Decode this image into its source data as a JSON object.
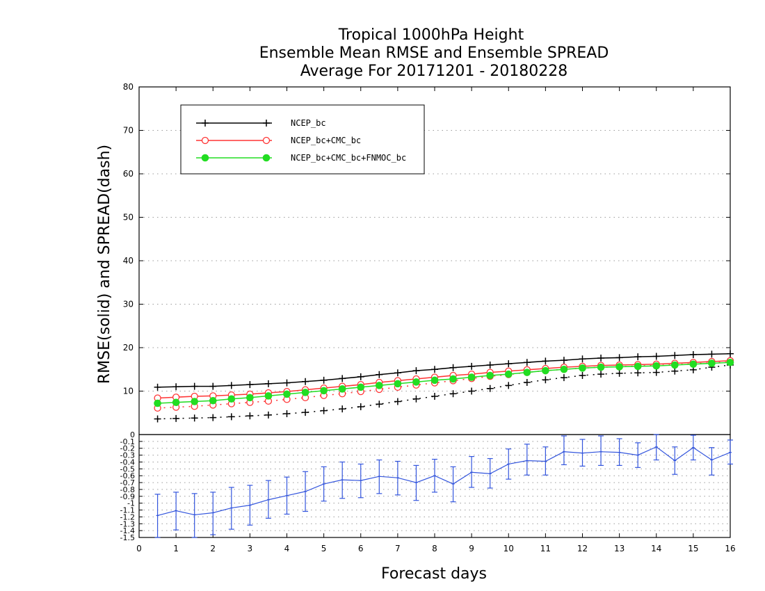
{
  "chart_data": [
    {
      "type": "line",
      "title_lines": [
        "Tropical 1000hPa Height",
        "Ensemble Mean RMSE and Ensemble SPREAD",
        "Average For 20171201 - 20180228"
      ],
      "xlabel": "Forecast days",
      "ylabel": "RMSE(solid) and SPREAD(dash)",
      "xlim": [
        0,
        16
      ],
      "ylim": [
        0,
        80
      ],
      "x_ticks": [
        0,
        1,
        2,
        3,
        4,
        5,
        6,
        7,
        8,
        9,
        10,
        11,
        12,
        13,
        14,
        15,
        16
      ],
      "x_tick_labels": [
        "0",
        "1",
        "2",
        "3",
        "4",
        "5",
        "6",
        "7",
        "8",
        "9",
        "10",
        "11",
        "12",
        "13",
        "14",
        "15",
        "16"
      ],
      "y_ticks": [
        10,
        20,
        30,
        40,
        50,
        60,
        70,
        80
      ],
      "y_tick_labels": [
        "10",
        "20",
        "30",
        "40",
        "50",
        "60",
        "70",
        "80"
      ],
      "grid": true,
      "legend_position": "top-left",
      "x": [
        0.5,
        1,
        1.5,
        2,
        2.5,
        3,
        3.5,
        4,
        4.5,
        5,
        5.5,
        6,
        6.5,
        7,
        7.5,
        8,
        8.5,
        9,
        9.5,
        10,
        10.5,
        11,
        11.5,
        12,
        12.5,
        13,
        13.5,
        14,
        14.5,
        15,
        15.5,
        16
      ],
      "series": [
        {
          "name": "NCEP_bc",
          "color": "#000000",
          "marker": "plus",
          "rmse": [
            10.9,
            11.0,
            11.1,
            11.1,
            11.3,
            11.5,
            11.7,
            11.9,
            12.2,
            12.5,
            12.9,
            13.3,
            13.8,
            14.2,
            14.7,
            15.0,
            15.4,
            15.7,
            16.0,
            16.3,
            16.6,
            16.9,
            17.1,
            17.4,
            17.6,
            17.7,
            17.9,
            18.0,
            18.2,
            18.4,
            18.5,
            18.6
          ],
          "spread": [
            3.6,
            3.7,
            3.8,
            3.9,
            4.1,
            4.3,
            4.5,
            4.8,
            5.1,
            5.5,
            5.9,
            6.4,
            7.0,
            7.6,
            8.2,
            8.8,
            9.4,
            10.0,
            10.6,
            11.3,
            12.0,
            12.6,
            13.1,
            13.6,
            13.9,
            14.1,
            14.2,
            14.3,
            14.6,
            14.9,
            15.5,
            16.0
          ]
        },
        {
          "name": "NCEP_bc+CMC_bc",
          "color": "#ff3333",
          "marker": "open-circle",
          "rmse": [
            8.4,
            8.6,
            8.8,
            8.9,
            9.1,
            9.3,
            9.6,
            9.9,
            10.3,
            10.7,
            11.1,
            11.5,
            12.0,
            12.4,
            12.8,
            13.2,
            13.6,
            13.9,
            14.3,
            14.6,
            14.9,
            15.2,
            15.5,
            15.7,
            15.9,
            16.0,
            16.1,
            16.2,
            16.4,
            16.6,
            16.8,
            17.0
          ],
          "spread": [
            6.1,
            6.3,
            6.5,
            6.8,
            7.1,
            7.4,
            7.7,
            8.1,
            8.5,
            9.0,
            9.4,
            9.9,
            10.4,
            10.9,
            11.4,
            11.9,
            12.4,
            12.9,
            13.4,
            13.8,
            14.3,
            14.7,
            15.0,
            15.3,
            15.5,
            15.6,
            15.8,
            15.9,
            16.1,
            16.3,
            16.5,
            16.7
          ]
        },
        {
          "name": "NCEP_bc+CMC_bc+FNMOC_bc",
          "color": "#22dd22",
          "marker": "filled-circle",
          "rmse": [
            7.2,
            7.4,
            7.6,
            7.8,
            8.2,
            8.5,
            8.9,
            9.3,
            9.7,
            10.1,
            10.5,
            10.9,
            11.3,
            11.7,
            12.1,
            12.5,
            12.8,
            13.2,
            13.6,
            13.9,
            14.3,
            14.7,
            15.0,
            15.3,
            15.5,
            15.6,
            15.7,
            15.8,
            16.0,
            16.2,
            16.4,
            16.6
          ]
        }
      ]
    },
    {
      "type": "line",
      "xlim": [
        0,
        16
      ],
      "ylim": [
        -1.5,
        0
      ],
      "y_ticks": [
        0,
        -0.1,
        -0.2,
        -0.3,
        -0.4,
        -0.5,
        -0.6,
        -0.7,
        -0.8,
        -0.9,
        -1,
        -1.1,
        -1.2,
        -1.3,
        -1.4,
        -1.5
      ],
      "y_tick_labels": [
        "0",
        "-0.1",
        "-0.2",
        "-0.3",
        "-0.4",
        "-0.5",
        "-0.6",
        "-0.7",
        "-0.8",
        "-0.9",
        "-1",
        "-1.1",
        "-1.2",
        "-1.3",
        "-1.4",
        "-1.5"
      ],
      "grid": true,
      "series": [
        {
          "color": "#3355dd",
          "marker": "errorbar",
          "x": [
            0.5,
            1,
            1.5,
            2,
            2.5,
            3,
            3.5,
            4,
            4.5,
            5,
            5.5,
            6,
            6.5,
            7,
            7.5,
            8,
            8.5,
            9,
            9.5,
            10,
            10.5,
            11,
            11.5,
            12,
            12.5,
            13,
            13.5,
            14,
            14.5,
            15,
            15.5,
            16
          ],
          "values": [
            -1.18,
            -1.11,
            -1.17,
            -1.14,
            -1.07,
            -1.03,
            -0.95,
            -0.89,
            -0.83,
            -0.72,
            -0.66,
            -0.67,
            -0.61,
            -0.63,
            -0.7,
            -0.6,
            -0.72,
            -0.55,
            -0.57,
            -0.43,
            -0.38,
            -0.39,
            -0.25,
            -0.27,
            -0.25,
            -0.26,
            -0.3,
            -0.18,
            -0.38,
            -0.19,
            -0.37,
            -0.26
          ],
          "err_low": [
            -1.5,
            -1.39,
            -1.5,
            -1.46,
            -1.38,
            -1.32,
            -1.22,
            -1.16,
            -1.12,
            -0.97,
            -0.93,
            -0.92,
            -0.86,
            -0.88,
            -0.96,
            -0.84,
            -0.98,
            -0.77,
            -0.78,
            -0.65,
            -0.59,
            -0.59,
            -0.44,
            -0.46,
            -0.45,
            -0.45,
            -0.48,
            -0.37,
            -0.58,
            -0.37,
            -0.59,
            -0.43
          ],
          "err_high": [
            -0.87,
            -0.84,
            -0.86,
            -0.84,
            -0.77,
            -0.74,
            -0.67,
            -0.62,
            -0.54,
            -0.47,
            -0.4,
            -0.43,
            -0.37,
            -0.39,
            -0.45,
            -0.36,
            -0.47,
            -0.32,
            -0.35,
            -0.21,
            -0.14,
            -0.18,
            -0.02,
            -0.07,
            -0.02,
            -0.06,
            -0.12,
            0,
            -0.18,
            -0.01,
            -0.19,
            -0.08
          ]
        }
      ]
    }
  ]
}
